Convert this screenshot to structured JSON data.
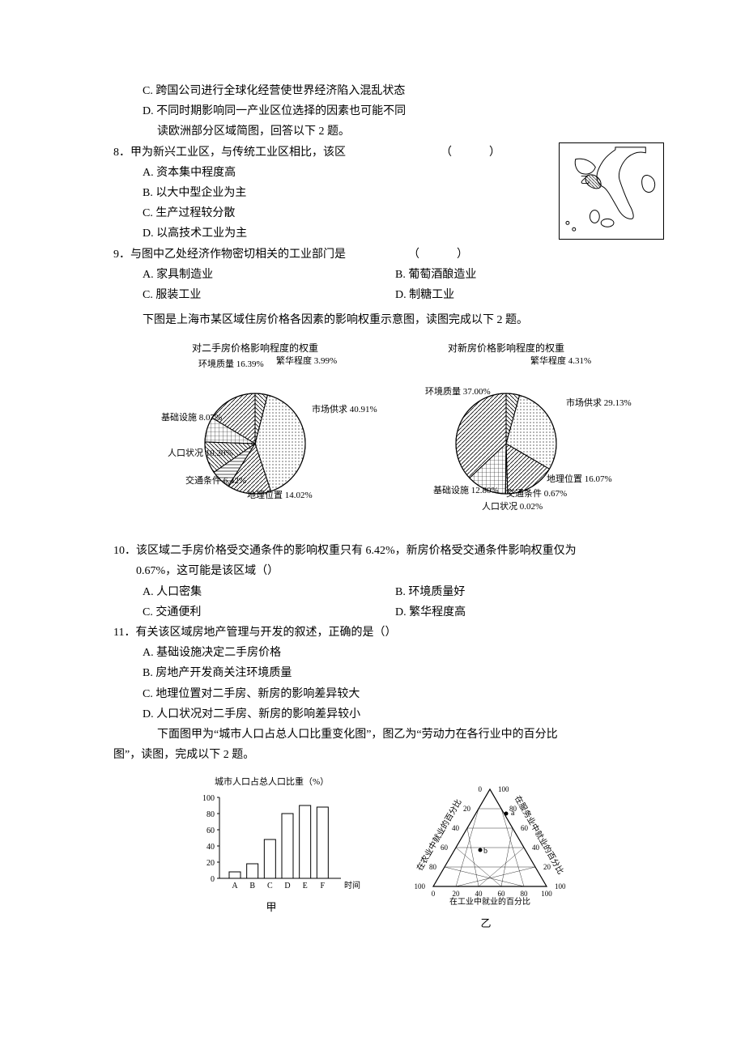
{
  "pre": {
    "c": "C. 跨国公司进行全球化经营使世界经济陷入混乱状态",
    "d": "D. 不同时期影响同一产业区位选择的因素也可能不同",
    "intro8": "读欧洲部分区域简图，回答以下 2 题。"
  },
  "q8": {
    "stem": "8．甲为新兴工业区，与传统工业区相比，该区",
    "paren": "（　　）",
    "a": "A. 资本集中程度高",
    "b": "B. 以大中型企业为主",
    "c": "C. 生产过程较分散",
    "d": "D. 以高技术工业为主"
  },
  "map": {
    "label": "乙"
  },
  "q9": {
    "stem": "9．与图中乙处经济作物密切相关的工业部门是",
    "paren": "（　　）",
    "a": "A. 家具制造业",
    "b": "B. 葡萄酒酿造业",
    "c": "C. 服装工业",
    "d": "D. 制糖工业"
  },
  "pieIntro": "下图是上海市某区域住房价格各因素的影响权重示意图，读图完成以下 2 题。",
  "pie1": {
    "title": "对二手房价格影响程度的权重",
    "slices": [
      {
        "label": "繁华程度",
        "pct": 3.99,
        "startDeg": 0
      },
      {
        "label": "市场供求",
        "pct": 40.91,
        "startDeg": 14.4
      },
      {
        "label": "地理位置",
        "pct": 14.02,
        "startDeg": 161.6
      },
      {
        "label": "交通条件",
        "pct": 6.42,
        "startDeg": 212.1
      },
      {
        "label": "人口状况",
        "pct": 10.2,
        "startDeg": 235.2
      },
      {
        "label": "基础设施",
        "pct": 8.07,
        "startDeg": 271.9
      },
      {
        "label": "环境质量",
        "pct": 16.39,
        "startDeg": 301.0
      }
    ],
    "labels": {
      "fanhua": "繁华程度\n3.99%",
      "shichang": "市场供求\n40.91%",
      "dili": "地理位置\n14.02%",
      "jiaotong": "交通条件\n6.42%",
      "renkou": "人口状况\n10.20%",
      "jichu": "基础设施\n8.07%",
      "huanjing": "环境质量\n16.39%"
    }
  },
  "pie2": {
    "title": "对新房价格影响程度的权重",
    "slices": [
      {
        "label": "繁华程度",
        "pct": 4.31,
        "startDeg": 0
      },
      {
        "label": "市场供求",
        "pct": 29.13,
        "startDeg": 15.5
      },
      {
        "label": "地理位置",
        "pct": 16.07,
        "startDeg": 120.4
      },
      {
        "label": "交通条件",
        "pct": 0.67,
        "startDeg": 178.2
      },
      {
        "label": "人口状况",
        "pct": 0.02,
        "startDeg": 180.6
      },
      {
        "label": "基础设施",
        "pct": 12.8,
        "startDeg": 180.7
      },
      {
        "label": "环境质量",
        "pct": 37.0,
        "startDeg": 226.8
      }
    ],
    "labels": {
      "fanhua": "繁华程度\n4.31%",
      "shichang": "市场供求\n29.13%",
      "dili": "地理位置 16.07%",
      "jiaotong": "交通条件 0.67%",
      "renkou": "人口状况\n0.02%",
      "jichu": "基础设施\n12.80%",
      "huanjing": "环境质量\n37.00%"
    }
  },
  "q10": {
    "stem": "10．该区域二手房价格受交通条件的影响权重只有 6.42%，新房价格受交通条件影响权重仅为",
    "stem2": "0.67%，这可能是该区域（）",
    "a": "A. 人口密集",
    "b": "B. 环境质量好",
    "c": "C. 交通便利",
    "d": "D. 繁华程度高"
  },
  "q11": {
    "stem": "11．有关该区域房地产管理与开发的叙述，正确的是（）",
    "a": "A. 基础设施决定二手房价格",
    "b": "B. 房地产开发商关注环境质量",
    "c": "C. 地理位置对二手房、新房的影响差异较大",
    "d": "D. 人口状况对二手房、新房的影响差异较小"
  },
  "figIntro1": "下面图甲为“城市人口占总人口比重变化图”，图乙为“劳动力在各行业中的百分比",
  "figIntro2": "图”，读图，完成以下 2 题。",
  "bar": {
    "title": "城市人口占总人口比重（%）",
    "yTicks": [
      0,
      20,
      40,
      60,
      80,
      100
    ],
    "cats": [
      "A",
      "B",
      "C",
      "D",
      "E",
      "F"
    ],
    "vals": [
      8,
      18,
      48,
      80,
      90,
      88
    ],
    "xLabel": "时间",
    "cap": "甲"
  },
  "tri": {
    "left": "在农业中就业的百分比",
    "right": "在服务业中就业的百分比",
    "bottom": "在工业中就业的百分比",
    "ticks": [
      0,
      20,
      40,
      60,
      80,
      100
    ],
    "pts": {
      "a": "a",
      "b": "b"
    },
    "cap": "乙"
  }
}
